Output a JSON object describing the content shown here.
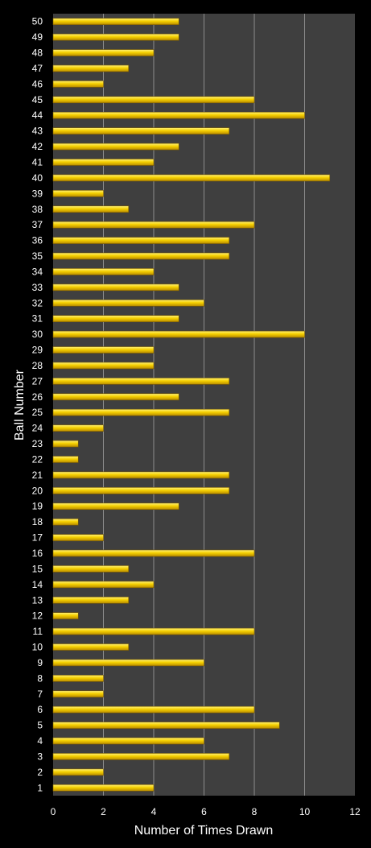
{
  "colors": {
    "background": "#000000",
    "plot_area": "#3f3f3f",
    "gridline": "#8c8c8c",
    "bar_fill": "#f5d000",
    "bar_highlight": "#fff27a",
    "bar_edge": "#7a5a00",
    "text": "#ffffff"
  },
  "chart_data": {
    "type": "bar",
    "orientation": "horizontal",
    "xlabel": "Number of Times Drawn",
    "ylabel": "Ball Number",
    "xlim": [
      0,
      12
    ],
    "xticks": [
      0,
      2,
      4,
      6,
      8,
      10,
      12
    ],
    "grid": true,
    "legend": "none",
    "categories": [
      "1",
      "2",
      "3",
      "4",
      "5",
      "6",
      "7",
      "8",
      "9",
      "10",
      "11",
      "12",
      "13",
      "14",
      "15",
      "16",
      "17",
      "18",
      "19",
      "20",
      "21",
      "22",
      "23",
      "24",
      "25",
      "26",
      "27",
      "28",
      "29",
      "30",
      "31",
      "32",
      "33",
      "34",
      "35",
      "36",
      "37",
      "38",
      "39",
      "40",
      "41",
      "42",
      "43",
      "44",
      "45",
      "46",
      "47",
      "48",
      "49",
      "50"
    ],
    "values": [
      4,
      2,
      7,
      6,
      9,
      8,
      2,
      2,
      6,
      3,
      8,
      1,
      3,
      4,
      3,
      8,
      2,
      1,
      5,
      7,
      7,
      1,
      1,
      2,
      7,
      5,
      7,
      4,
      4,
      10,
      5,
      6,
      5,
      4,
      7,
      7,
      8,
      3,
      2,
      11,
      4,
      5,
      7,
      10,
      8,
      2,
      3,
      4,
      5,
      5
    ]
  }
}
